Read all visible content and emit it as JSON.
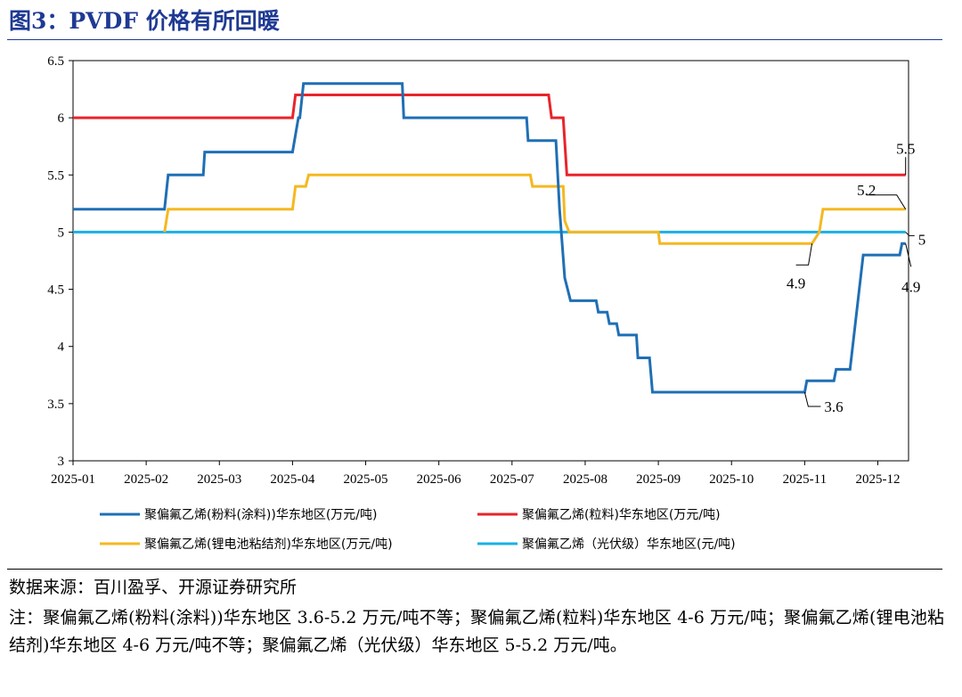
{
  "figure": {
    "title": "图3：PVDF 价格有所回暖",
    "source": "数据来源：百川盈孚、开源证券研究所",
    "note": "注：聚偏氟乙烯(粉料(涂料))华东地区 3.6-5.2 万元/吨不等；聚偏氟乙烯(粒料)华东地区 4-6 万元/吨；聚偏氟乙烯(锂电池粘结剂)华东地区 4-6 万元/吨不等；聚偏氟乙烯（光伏级）华东地区 5-5.2 万元/吨。"
  },
  "chart_data": {
    "type": "line",
    "title": "",
    "xlabel": "",
    "ylabel": "",
    "ylim": [
      3,
      6.5
    ],
    "yticks": [
      "3",
      "3.5",
      "4",
      "4.5",
      "5",
      "5.5",
      "6",
      "6.5"
    ],
    "xticks": [
      "2025-01",
      "2025-02",
      "2025-03",
      "2025-04",
      "2025-05",
      "2025-06",
      "2025-07",
      "2025-08",
      "2025-09",
      "2025-10",
      "2025-11",
      "2025-12"
    ],
    "x_unit": "months since 2025-01",
    "grid": false,
    "legend_position": "bottom",
    "series": [
      {
        "name": "聚偏氟乙烯(粉料(涂料))华东地区(万元/吨)",
        "color": "#1f6fb5",
        "step": true,
        "points": [
          [
            0,
            5.2
          ],
          [
            1.25,
            5.2
          ],
          [
            1.3,
            5.5
          ],
          [
            1.78,
            5.5
          ],
          [
            1.8,
            5.7
          ],
          [
            3.0,
            5.7
          ],
          [
            3.08,
            6.0
          ],
          [
            3.1,
            6.0
          ],
          [
            3.15,
            6.3
          ],
          [
            4.5,
            6.3
          ],
          [
            4.52,
            6.0
          ],
          [
            6.2,
            6.0
          ],
          [
            6.22,
            5.8
          ],
          [
            6.6,
            5.8
          ],
          [
            6.65,
            5.2
          ],
          [
            6.72,
            4.6
          ],
          [
            6.8,
            4.4
          ],
          [
            7.15,
            4.4
          ],
          [
            7.18,
            4.3
          ],
          [
            7.3,
            4.3
          ],
          [
            7.33,
            4.2
          ],
          [
            7.43,
            4.2
          ],
          [
            7.46,
            4.1
          ],
          [
            7.7,
            4.1
          ],
          [
            7.72,
            3.9
          ],
          [
            7.88,
            3.9
          ],
          [
            7.92,
            3.6
          ],
          [
            10.0,
            3.6
          ],
          [
            10.03,
            3.7
          ],
          [
            10.4,
            3.7
          ],
          [
            10.43,
            3.8
          ],
          [
            10.62,
            3.8
          ],
          [
            10.8,
            4.8
          ],
          [
            11.3,
            4.8
          ],
          [
            11.33,
            4.9
          ],
          [
            11.38,
            4.9
          ]
        ],
        "annotations": [
          {
            "label": "3.6",
            "at": [
              10.0,
              3.6
            ]
          },
          {
            "label": "4.9",
            "at": [
              11.38,
              4.9
            ]
          }
        ]
      },
      {
        "name": "聚偏氟乙烯(粒料)华东地区(万元/吨)",
        "color": "#e8242b",
        "step": true,
        "points": [
          [
            0,
            6.0
          ],
          [
            3.0,
            6.0
          ],
          [
            3.04,
            6.2
          ],
          [
            6.5,
            6.2
          ],
          [
            6.54,
            6.0
          ],
          [
            6.7,
            6.0
          ],
          [
            6.75,
            5.5
          ],
          [
            11.38,
            5.5
          ]
        ],
        "annotations": [
          {
            "label": "5.5",
            "at": [
              11.38,
              5.5
            ]
          }
        ]
      },
      {
        "name": "聚偏氟乙烯(锂电池粘结剂)华东地区(万元/吨)",
        "color": "#f5b820",
        "step": true,
        "points": [
          [
            1.25,
            5.0
          ],
          [
            1.3,
            5.2
          ],
          [
            3.0,
            5.2
          ],
          [
            3.04,
            5.4
          ],
          [
            3.18,
            5.4
          ],
          [
            3.22,
            5.5
          ],
          [
            6.25,
            5.5
          ],
          [
            6.28,
            5.4
          ],
          [
            6.7,
            5.4
          ],
          [
            6.72,
            5.1
          ],
          [
            6.78,
            5.0
          ],
          [
            8.0,
            5.0
          ],
          [
            8.02,
            4.9
          ],
          [
            10.1,
            4.9
          ],
          [
            10.2,
            5.0
          ],
          [
            10.25,
            5.2
          ],
          [
            11.38,
            5.2
          ]
        ],
        "annotations": [
          {
            "label": "5.2",
            "at": [
              11.38,
              5.2
            ]
          },
          {
            "label": "4.9",
            "at": [
              10.1,
              4.9
            ]
          }
        ]
      },
      {
        "name": "聚偏氟乙烯（光伏级）华东地区(元/吨)",
        "color": "#1ab0e5",
        "step": true,
        "points": [
          [
            0,
            5.0
          ],
          [
            11.38,
            5.0
          ]
        ],
        "annotations": [
          {
            "label": "5",
            "at": [
              11.38,
              5.0
            ]
          }
        ]
      }
    ]
  }
}
